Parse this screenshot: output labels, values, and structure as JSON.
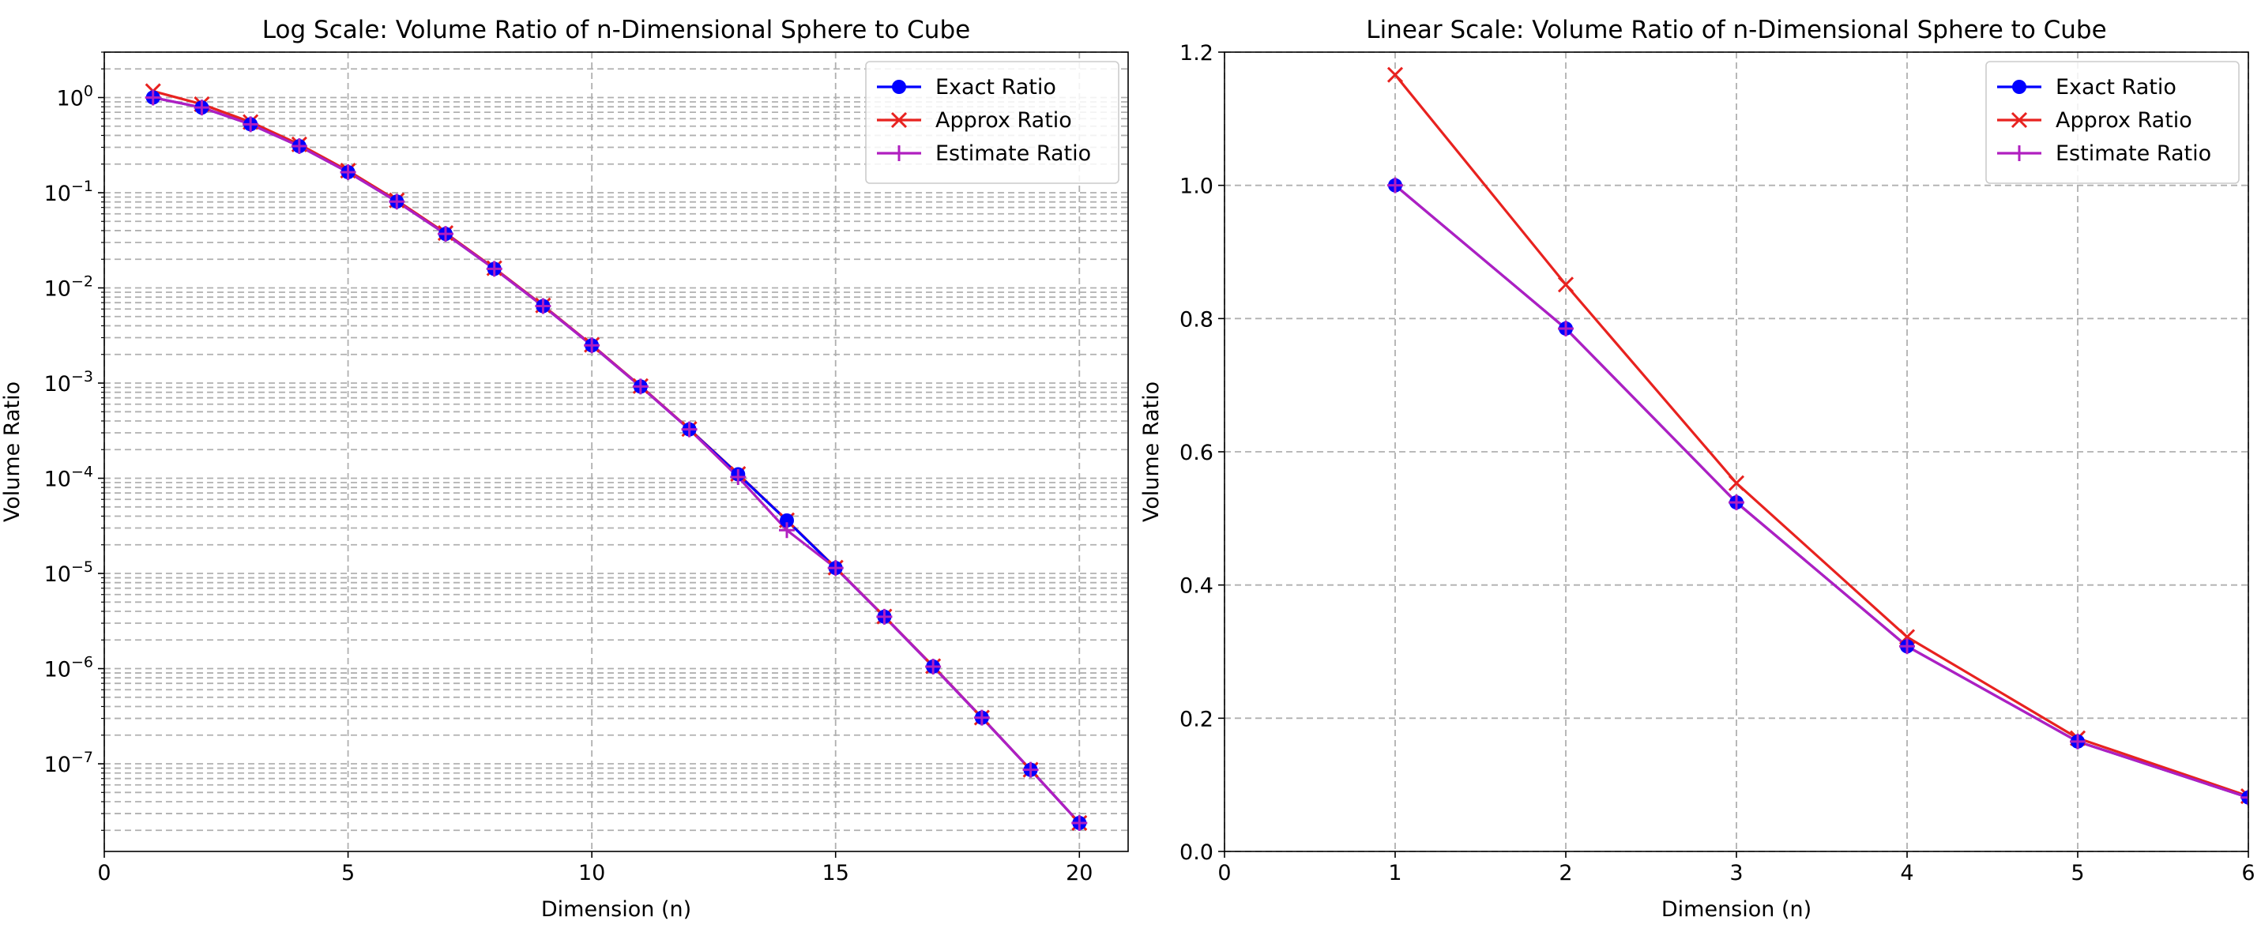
{
  "chart_data": [
    {
      "type": "line",
      "title": "Log Scale: Volume Ratio of n-Dimensional Sphere to Cube",
      "xlabel": "Dimension (n)",
      "ylabel": "Volume Ratio",
      "xlim": [
        0,
        21
      ],
      "ylim": [
        1.2e-08,
        3
      ],
      "yscale": "log",
      "grid": true,
      "legend_position": "top-right",
      "xticks": [
        0,
        5,
        10,
        15,
        20
      ],
      "yticks": [
        {
          "value": 1,
          "label": "10^0"
        },
        {
          "value": 0.1,
          "label": "10^-1"
        },
        {
          "value": 0.01,
          "label": "10^-2"
        },
        {
          "value": 0.001,
          "label": "10^-3"
        },
        {
          "value": 0.0001,
          "label": "10^-4"
        },
        {
          "value": 1e-05,
          "label": "10^-5"
        },
        {
          "value": 1e-06,
          "label": "10^-6"
        },
        {
          "value": 1e-07,
          "label": "10^-7"
        }
      ],
      "x": [
        1,
        2,
        3,
        4,
        5,
        6,
        7,
        8,
        9,
        10,
        11,
        12,
        13,
        14,
        15,
        16,
        17,
        18,
        19,
        20
      ],
      "series": [
        {
          "name": "Exact Ratio",
          "color": "#0000ff",
          "marker": "circle",
          "values": [
            1.0,
            0.7854,
            0.5236,
            0.3084,
            0.1645,
            0.08075,
            0.03691,
            0.01585,
            0.006442,
            0.00249,
            0.000919,
            0.000326,
            0.00011,
            3.6e-05,
            1.14e-05,
            3.51e-06,
            1.05e-06,
            3.05e-07,
            8.64e-08,
            2.39e-08
          ]
        },
        {
          "name": "Approx Ratio",
          "color": "#e8221f",
          "marker": "x",
          "values": [
            1.166,
            0.851,
            0.553,
            0.322,
            0.1704,
            0.0831,
            0.0377,
            0.01612,
            0.00654,
            0.002522,
            0.000929,
            0.000329,
            0.000111,
            3.62e-05,
            1.15e-05,
            3.53e-06,
            1.06e-06,
            3.06e-07,
            8.66e-08,
            2.39e-08
          ]
        },
        {
          "name": "Estimate Ratio",
          "color": "#b01fc0",
          "marker": "plus",
          "values": [
            1.0,
            0.7854,
            0.5236,
            0.3084,
            0.1645,
            0.08075,
            0.03691,
            0.01585,
            0.006442,
            0.00249,
            0.000919,
            0.000326,
            0.000103,
            2.85e-05,
            1.14e-05,
            3.51e-06,
            1.05e-06,
            3.05e-07,
            8.64e-08,
            2.39e-08
          ]
        }
      ]
    },
    {
      "type": "line",
      "title": "Linear Scale: Volume Ratio of n-Dimensional Sphere to Cube",
      "xlabel": "Dimension (n)",
      "ylabel": "Volume Ratio",
      "xlim": [
        0,
        6
      ],
      "ylim": [
        0,
        1.2
      ],
      "yscale": "linear",
      "grid": true,
      "legend_position": "top-right",
      "xticks": [
        0,
        1,
        2,
        3,
        4,
        5,
        6
      ],
      "yticks": [
        {
          "value": 0.0,
          "label": "0.0"
        },
        {
          "value": 0.2,
          "label": "0.2"
        },
        {
          "value": 0.4,
          "label": "0.4"
        },
        {
          "value": 0.6,
          "label": "0.6"
        },
        {
          "value": 0.8,
          "label": "0.8"
        },
        {
          "value": 1.0,
          "label": "1.0"
        },
        {
          "value": 1.2,
          "label": "1.2"
        }
      ],
      "x": [
        1,
        2,
        3,
        4,
        5,
        6
      ],
      "series": [
        {
          "name": "Exact Ratio",
          "color": "#0000ff",
          "marker": "circle",
          "values": [
            1.0,
            0.785,
            0.524,
            0.308,
            0.165,
            0.081
          ]
        },
        {
          "name": "Approx Ratio",
          "color": "#e8221f",
          "marker": "x",
          "values": [
            1.166,
            0.851,
            0.553,
            0.322,
            0.17,
            0.083
          ]
        },
        {
          "name": "Estimate Ratio",
          "color": "#b01fc0",
          "marker": "plus",
          "values": [
            1.0,
            0.785,
            0.524,
            0.308,
            0.165,
            0.081
          ]
        }
      ]
    }
  ]
}
